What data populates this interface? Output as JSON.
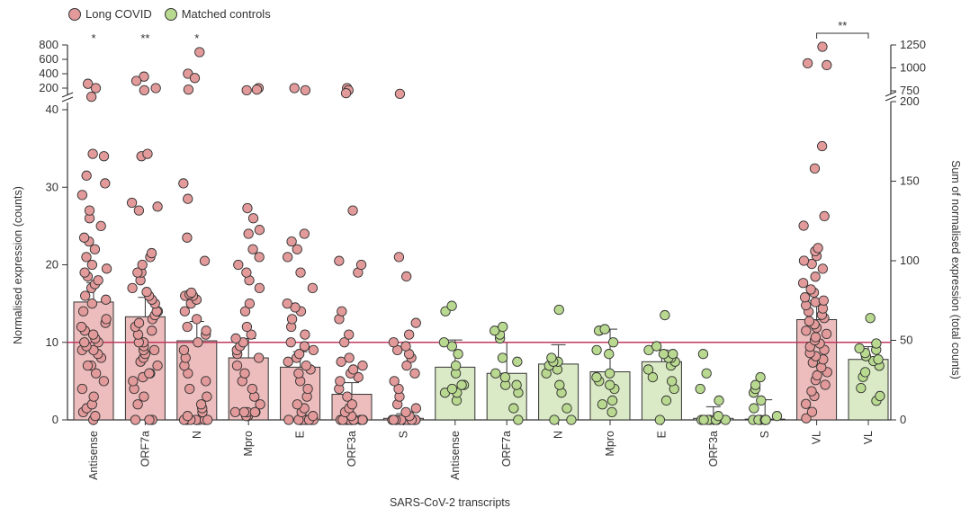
{
  "legend": [
    {
      "label": "Long COVID",
      "color": "#e39a9a"
    },
    {
      "label": "Matched controls",
      "color": "#b8d98f"
    }
  ],
  "colors": {
    "long_bar": "#edbcbc",
    "long_dot": "#e39a9a",
    "ctrl_bar": "#dbeac6",
    "ctrl_dot": "#b8d98f",
    "threshold": "#c0395f",
    "outline": "#333333"
  },
  "chart_data": {
    "type": "bar",
    "xlabel": "SARS-CoV-2 transcripts",
    "ylabel": "Normalised expression (counts)",
    "ylabel_right": "Sum of normalised expression (total counts)",
    "ylim_lower": [
      0,
      40
    ],
    "yticks_lower": [
      "0",
      "10",
      "20",
      "30",
      "40"
    ],
    "ylim_upper": [
      200,
      800
    ],
    "yticks_upper": [
      "200",
      "400",
      "600",
      "800"
    ],
    "ylim_right_lower": [
      0,
      200
    ],
    "yticks_right_lower": [
      "0",
      "50",
      "100",
      "150",
      "200"
    ],
    "ylim_right_upper": [
      750,
      1250
    ],
    "yticks_right_upper": [
      "750",
      "1000",
      "1250"
    ],
    "threshold": 10,
    "categories": [
      {
        "label": "Antisense",
        "group": "long",
        "axis": "left",
        "bar": 15.2,
        "err": 2.5,
        "sig": "*",
        "points": [
          0,
          0.5,
          1,
          1.5,
          2,
          3,
          4,
          5,
          6,
          7,
          7,
          8,
          8.5,
          9,
          9,
          9.5,
          10,
          10,
          10.5,
          11,
          11.5,
          12,
          12.5,
          13,
          14,
          15,
          15.5,
          16,
          17,
          17.5,
          18,
          18.5,
          19,
          19.5,
          20,
          21,
          22,
          23,
          23.5,
          25,
          26,
          27,
          29,
          30.5,
          31.5,
          34,
          34.3
        ],
        "upper_points": [
          260,
          200,
          80
        ]
      },
      {
        "label": "ORF7a",
        "group": "long",
        "axis": "left",
        "bar": 13.3,
        "err": 2.5,
        "sig": "**",
        "points": [
          0,
          0,
          0,
          2,
          3,
          4,
          5,
          5.5,
          6,
          6,
          7,
          7.5,
          8,
          8.5,
          9,
          9,
          9.5,
          10,
          10,
          11,
          11.5,
          12,
          12.5,
          13,
          13.5,
          14,
          14,
          15,
          15.5,
          16,
          16.5,
          17,
          18,
          19,
          19,
          20,
          21,
          21.5,
          27,
          27.5,
          28,
          34,
          34.3
        ],
        "upper_points": [
          360,
          300,
          200,
          170
        ]
      },
      {
        "label": "N",
        "group": "long",
        "axis": "left",
        "bar": 10.2,
        "err": 2.5,
        "sig": "*",
        "points": [
          0,
          0,
          0,
          0,
          0,
          0,
          0,
          0,
          0.5,
          1,
          1.5,
          2,
          3,
          4,
          5,
          6,
          7,
          8,
          9,
          10,
          11,
          11.5,
          12,
          13,
          14,
          15,
          15.5,
          16,
          16,
          16.2,
          16.4,
          20.5,
          23.5,
          28.5,
          30.5
        ],
        "upper_points": [
          700,
          400,
          340,
          180
        ]
      },
      {
        "label": "Mpro",
        "group": "long",
        "axis": "left",
        "bar": 8.0,
        "err": 2.5,
        "sig": "",
        "points": [
          0.5,
          0.5,
          1,
          1,
          1,
          1,
          1,
          2,
          3,
          4,
          5,
          6,
          7,
          8,
          8.5,
          9,
          9.5,
          10,
          10.5,
          11,
          12,
          14,
          15,
          17,
          18,
          19,
          20,
          21,
          22,
          24,
          24.5,
          26,
          27.3
        ],
        "upper_points": [
          200,
          180,
          170
        ]
      },
      {
        "label": "E",
        "group": "long",
        "axis": "left",
        "bar": 6.8,
        "err": 2.0,
        "sig": "",
        "points": [
          0,
          0,
          0,
          0,
          0,
          0,
          0,
          0,
          0,
          0,
          0.5,
          1,
          1.5,
          2,
          3,
          4,
          5,
          6,
          6.5,
          7,
          7.5,
          8,
          8.5,
          9,
          9.5,
          10,
          11,
          12,
          13,
          14,
          14.5,
          15,
          17,
          19,
          21,
          22,
          23,
          24
        ],
        "upper_points": [
          200,
          170
        ]
      },
      {
        "label": "ORF3a",
        "group": "long",
        "axis": "left",
        "bar": 3.3,
        "err": 1.5,
        "sig": "",
        "points": [
          0,
          0,
          0,
          0,
          0,
          0,
          0,
          0,
          0,
          0,
          0,
          0,
          0.5,
          1,
          1.5,
          2,
          3,
          4,
          5,
          5.5,
          6,
          6.5,
          7,
          7.5,
          8,
          10,
          11,
          13,
          14,
          19,
          20,
          20.5,
          27
        ],
        "upper_points": [
          200,
          170,
          130
        ]
      },
      {
        "label": "S",
        "group": "long",
        "axis": "left",
        "bar": 0.2,
        "err": 0.6,
        "sig": "",
        "points": [
          0,
          0,
          0,
          0,
          0,
          0,
          0,
          0,
          0,
          0,
          0,
          0,
          0,
          0.5,
          1,
          1.5,
          2,
          3,
          4,
          5,
          6,
          7,
          8,
          8.5,
          9,
          9.5,
          10,
          11,
          12.5,
          18.5,
          21
        ],
        "upper_points": [
          120
        ]
      },
      {
        "label": "Antisense",
        "group": "ctrl",
        "axis": "left",
        "bar": 6.8,
        "err": 3.5,
        "sig": "",
        "points": [
          2.5,
          3.5,
          3.5,
          4,
          4.5,
          4.5,
          6,
          7,
          8.5,
          9.5,
          10,
          14,
          14.7
        ]
      },
      {
        "label": "ORF7a",
        "group": "ctrl",
        "axis": "left",
        "bar": 6.0,
        "err": 4.0,
        "sig": "",
        "points": [
          0,
          1.5,
          3.5,
          4.5,
          4.5,
          5.5,
          6,
          7.5,
          8,
          10.5,
          11,
          11.5,
          12
        ]
      },
      {
        "label": "N",
        "group": "ctrl",
        "axis": "left",
        "bar": 7.2,
        "err": 2.5,
        "sig": "",
        "points": [
          0,
          0,
          1.5,
          3.5,
          4.5,
          6,
          6.5,
          7,
          7.5,
          7.5,
          8,
          14.2
        ]
      },
      {
        "label": "Mpro",
        "group": "ctrl",
        "axis": "left",
        "bar": 6.2,
        "err": 5.5,
        "sig": "",
        "points": [
          1,
          2,
          2.5,
          4,
          4.5,
          5,
          5.5,
          6,
          8.5,
          9,
          10,
          11.5,
          11.5,
          11.7
        ]
      },
      {
        "label": "E",
        "group": "ctrl",
        "axis": "left",
        "bar": 7.5,
        "err": 1.5,
        "sig": "",
        "points": [
          0,
          2.5,
          4,
          5,
          5.5,
          6.5,
          7,
          7.5,
          8,
          8,
          8.5,
          8.5,
          9,
          9.5,
          13.5
        ]
      },
      {
        "label": "ORF3a",
        "group": "ctrl",
        "axis": "left",
        "bar": 0.2,
        "err": 1.5,
        "sig": "",
        "points": [
          0,
          0,
          0,
          0,
          0,
          0,
          0,
          0.5,
          2.5,
          4,
          6,
          8.5
        ]
      },
      {
        "label": "S",
        "group": "ctrl",
        "axis": "left",
        "bar": 0.1,
        "err": 2.5,
        "sig": "",
        "points": [
          0,
          0,
          0,
          0,
          0,
          0,
          0.5,
          1.5,
          2.5,
          3.5,
          4,
          4.5,
          5.5
        ]
      },
      {
        "label": "VL",
        "group": "long",
        "axis": "right",
        "bar": 63,
        "err": 12,
        "sig": "",
        "points": [
          1,
          5,
          10,
          15,
          18,
          22,
          25,
          28,
          30,
          33,
          36,
          38,
          40,
          42,
          44,
          46,
          48,
          50,
          52,
          54,
          56,
          58,
          60,
          62,
          64,
          66,
          68,
          70,
          72,
          74,
          75,
          77,
          80,
          82,
          86,
          90,
          95,
          98,
          100,
          103,
          106,
          108,
          122,
          128,
          158,
          172
        ],
        "upper_points": [
          1230,
          1050,
          1030
        ]
      },
      {
        "label": "VL",
        "group": "ctrl",
        "axis": "right",
        "bar": 38,
        "err": 8,
        "sig": "",
        "points": [
          12,
          15,
          20,
          27,
          30,
          34,
          37,
          38,
          40,
          42,
          44,
          45,
          48,
          64
        ]
      }
    ],
    "brackets": [
      {
        "from": 14,
        "to": 15,
        "label": "**"
      }
    ]
  }
}
